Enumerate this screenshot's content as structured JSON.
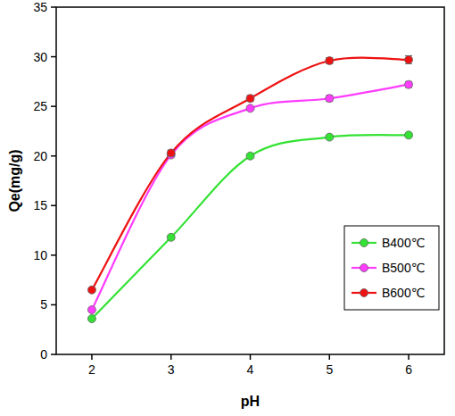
{
  "chart_data": {
    "type": "line",
    "x_label": "pH",
    "y_label": "Qe(mg/g)",
    "x": [
      2,
      3,
      4,
      5,
      6
    ],
    "series": [
      {
        "name": "B400℃",
        "color": "#33e233",
        "marker": "circle",
        "line_style": "smooth",
        "values": [
          3.6,
          11.8,
          20.0,
          21.9,
          22.1
        ],
        "errors": [
          0.1,
          0.2,
          0.2,
          0.2,
          0.2
        ]
      },
      {
        "name": "B500℃",
        "color": "#ff3cff",
        "marker": "circle",
        "line_style": "smooth",
        "values": [
          4.5,
          20.1,
          24.8,
          25.8,
          27.2
        ],
        "errors": [
          0.2,
          0.2,
          0.2,
          0.3,
          0.3
        ]
      },
      {
        "name": "B600℃",
        "color": "#ee1111",
        "marker": "circle",
        "line_style": "smooth",
        "values": [
          6.5,
          20.3,
          25.8,
          29.6,
          29.7
        ],
        "errors": [
          0.2,
          0.3,
          0.3,
          0.3,
          0.4
        ]
      }
    ],
    "xlim": [
      1.55,
      6.45
    ],
    "xticks": [
      2,
      3,
      4,
      5,
      6
    ],
    "ylim": [
      0,
      35
    ],
    "yticks": [
      0,
      5,
      10,
      15,
      20,
      25,
      30,
      35
    ],
    "grid": false,
    "legend": "lower right"
  }
}
